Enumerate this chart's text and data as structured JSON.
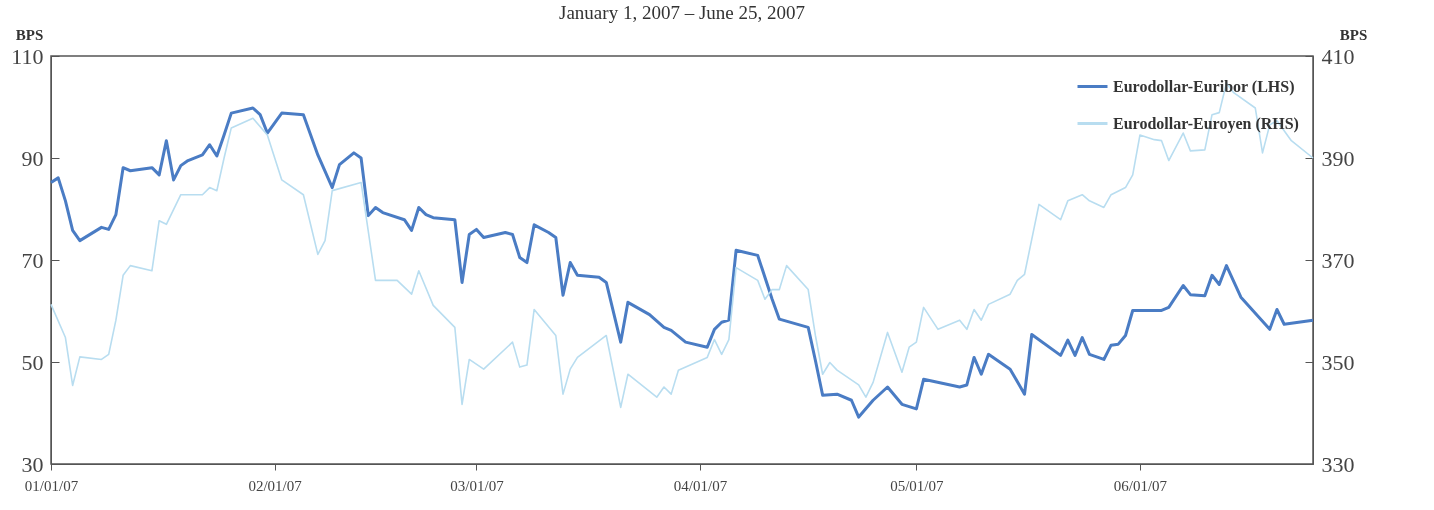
{
  "chart_data": {
    "type": "line",
    "title": "January 1, 2007 – June 25, 2007",
    "ylabel": "BPS",
    "y2label": "BPS",
    "xlim": [
      "2007-01-01",
      "2007-06-25"
    ],
    "xticks": [
      {
        "value": "2007-01-01",
        "label": "01/01/07"
      },
      {
        "value": "2007-02-01",
        "label": "02/01/07"
      },
      {
        "value": "2007-03-01",
        "label": "03/01/07"
      },
      {
        "value": "2007-04-01",
        "label": "04/01/07"
      },
      {
        "value": "2007-05-01",
        "label": "05/01/07"
      },
      {
        "value": "2007-06-01",
        "label": "06/01/07"
      }
    ],
    "ylim": [
      30,
      110
    ],
    "yticks": [
      30,
      50,
      70,
      90,
      110
    ],
    "y2lim": [
      330,
      410
    ],
    "y2ticks": [
      330,
      350,
      370,
      390,
      410
    ],
    "legend": "top right",
    "grid": false,
    "series": [
      {
        "name": "Eurodollar-Euribor (LHS)",
        "color": "#4a7cc4",
        "x": [
          "2007-01-01",
          "2007-01-02",
          "2007-01-03",
          "2007-01-04",
          "2007-01-05",
          "2007-01-08",
          "2007-01-09",
          "2007-01-10",
          "2007-01-11",
          "2007-01-12",
          "2007-01-15",
          "2007-01-16",
          "2007-01-17",
          "2007-01-18",
          "2007-01-19",
          "2007-01-20",
          "2007-01-22",
          "2007-01-23",
          "2007-01-24",
          "2007-01-25",
          "2007-01-26",
          "2007-01-29",
          "2007-01-30",
          "2007-01-31",
          "2007-02-02",
          "2007-02-05",
          "2007-02-07",
          "2007-02-09",
          "2007-02-10",
          "2007-02-12",
          "2007-02-13",
          "2007-02-14",
          "2007-02-15",
          "2007-02-16",
          "2007-02-19",
          "2007-02-20",
          "2007-02-21",
          "2007-02-22",
          "2007-02-23",
          "2007-02-26",
          "2007-02-27",
          "2007-02-28",
          "2007-03-01",
          "2007-03-02",
          "2007-03-05",
          "2007-03-06",
          "2007-03-07",
          "2007-03-08",
          "2007-03-09",
          "2007-03-11",
          "2007-03-12",
          "2007-03-13",
          "2007-03-14",
          "2007-03-15",
          "2007-03-18",
          "2007-03-19",
          "2007-03-21",
          "2007-03-22",
          "2007-03-25",
          "2007-03-27",
          "2007-03-28",
          "2007-03-30",
          "2007-04-02",
          "2007-04-03",
          "2007-04-04",
          "2007-04-05",
          "2007-04-06",
          "2007-04-09",
          "2007-04-11",
          "2007-04-12",
          "2007-04-16",
          "2007-04-17",
          "2007-04-18",
          "2007-04-20",
          "2007-04-22",
          "2007-04-23",
          "2007-04-25",
          "2007-04-27",
          "2007-04-29",
          "2007-05-01",
          "2007-05-02",
          "2007-05-07",
          "2007-05-08",
          "2007-05-09",
          "2007-05-10",
          "2007-05-11",
          "2007-05-14",
          "2007-05-16",
          "2007-05-17",
          "2007-05-21",
          "2007-05-22",
          "2007-05-23",
          "2007-05-24",
          "2007-05-25",
          "2007-05-27",
          "2007-05-28",
          "2007-05-29",
          "2007-05-30",
          "2007-05-31",
          "2007-06-04",
          "2007-06-05",
          "2007-06-07",
          "2007-06-08",
          "2007-06-10",
          "2007-06-11",
          "2007-06-12",
          "2007-06-13",
          "2007-06-15",
          "2007-06-19",
          "2007-06-20",
          "2007-06-21",
          "2007-06-25"
        ],
        "values": [
          85.2,
          86.1,
          81.6,
          75.8,
          73.8,
          76.4,
          76.0,
          78.9,
          88.1,
          87.5,
          88.1,
          86.7,
          93.4,
          85.7,
          88.5,
          89.5,
          90.6,
          92.6,
          90.4,
          94.5,
          98.8,
          99.8,
          98.5,
          94.9,
          98.8,
          98.5,
          90.6,
          84.2,
          88.7,
          91.0,
          90.0,
          78.7,
          80.3,
          79.3,
          77.9,
          75.8,
          80.3,
          78.9,
          78.3,
          77.9,
          65.6,
          75.0,
          76.0,
          74.4,
          75.4,
          75.0,
          70.5,
          69.5,
          76.9,
          75.4,
          74.4,
          63.1,
          69.5,
          67.0,
          66.6,
          65.6,
          53.9,
          61.7,
          59.3,
          56.8,
          56.2,
          53.9,
          52.9,
          56.4,
          57.8,
          58.2,
          71.9,
          70.9,
          62.3,
          58.4,
          56.8,
          50.3,
          43.5,
          43.7,
          42.5,
          39.2,
          42.5,
          45.1,
          41.7,
          40.8,
          46.6,
          45.1,
          45.5,
          50.9,
          47.6,
          51.5,
          48.6,
          43.7,
          55.4,
          51.3,
          54.3,
          51.3,
          54.8,
          51.5,
          50.5,
          53.3,
          53.5,
          55.2,
          60.1,
          60.1,
          60.7,
          65.0,
          63.2,
          63.0,
          67.0,
          65.2,
          68.9,
          62.7,
          56.4,
          60.3,
          57.4,
          58.2
        ]
      },
      {
        "name": "Eurodollar-Euroyen (RHS)",
        "color": "#b8ddf0",
        "axis": "y2",
        "x": [
          "2007-01-01",
          "2007-01-03",
          "2007-01-04",
          "2007-01-05",
          "2007-01-08",
          "2007-01-09",
          "2007-01-10",
          "2007-01-11",
          "2007-01-12",
          "2007-01-15",
          "2007-01-16",
          "2007-01-17",
          "2007-01-19",
          "2007-01-22",
          "2007-01-23",
          "2007-01-24",
          "2007-01-25",
          "2007-01-26",
          "2007-01-29",
          "2007-01-31",
          "2007-02-02",
          "2007-02-05",
          "2007-02-07",
          "2007-02-08",
          "2007-02-09",
          "2007-02-13",
          "2007-02-15",
          "2007-02-18",
          "2007-02-20",
          "2007-02-21",
          "2007-02-23",
          "2007-02-26",
          "2007-02-27",
          "2007-02-28",
          "2007-03-02",
          "2007-03-06",
          "2007-03-07",
          "2007-03-08",
          "2007-03-09",
          "2007-03-12",
          "2007-03-13",
          "2007-03-14",
          "2007-03-15",
          "2007-03-19",
          "2007-03-21",
          "2007-03-22",
          "2007-03-26",
          "2007-03-27",
          "2007-03-28",
          "2007-03-29",
          "2007-04-02",
          "2007-04-03",
          "2007-04-04",
          "2007-04-05",
          "2007-04-06",
          "2007-04-09",
          "2007-04-10",
          "2007-04-11",
          "2007-04-12",
          "2007-04-13",
          "2007-04-16",
          "2007-04-17",
          "2007-04-18",
          "2007-04-19",
          "2007-04-20",
          "2007-04-23",
          "2007-04-24",
          "2007-04-25",
          "2007-04-27",
          "2007-04-29",
          "2007-04-30",
          "2007-05-01",
          "2007-05-02",
          "2007-05-04",
          "2007-05-07",
          "2007-05-08",
          "2007-05-09",
          "2007-05-10",
          "2007-05-11",
          "2007-05-14",
          "2007-05-15",
          "2007-05-16",
          "2007-05-18",
          "2007-05-21",
          "2007-05-22",
          "2007-05-24",
          "2007-05-25",
          "2007-05-27",
          "2007-05-28",
          "2007-05-30",
          "2007-05-31",
          "2007-06-01",
          "2007-06-03",
          "2007-06-04",
          "2007-06-05",
          "2007-06-07",
          "2007-06-08",
          "2007-06-10",
          "2007-06-11",
          "2007-06-12",
          "2007-06-13",
          "2007-06-14",
          "2007-06-17",
          "2007-06-18",
          "2007-06-19",
          "2007-06-20",
          "2007-06-22",
          "2007-06-25"
        ],
        "values": [
          361.3,
          354.8,
          345.4,
          351.0,
          350.5,
          351.5,
          358.2,
          367.0,
          368.9,
          367.9,
          377.7,
          377.0,
          382.8,
          382.8,
          384.2,
          383.6,
          390.0,
          395.9,
          397.8,
          394.5,
          385.7,
          382.8,
          371.1,
          373.8,
          383.6,
          385.2,
          366.0,
          366.0,
          363.3,
          367.9,
          361.1,
          356.8,
          341.7,
          350.5,
          348.6,
          353.9,
          349.0,
          349.4,
          360.3,
          355.2,
          343.7,
          348.6,
          350.9,
          355.2,
          341.1,
          347.6,
          343.1,
          345.1,
          343.7,
          348.4,
          350.9,
          354.4,
          351.5,
          354.4,
          368.5,
          366.0,
          362.3,
          364.2,
          364.2,
          368.9,
          364.2,
          355.2,
          347.6,
          349.9,
          348.4,
          345.5,
          343.1,
          346.0,
          355.8,
          348.0,
          352.9,
          353.9,
          360.7,
          356.4,
          358.2,
          356.4,
          360.3,
          358.2,
          361.3,
          363.3,
          366.0,
          367.2,
          380.9,
          377.9,
          381.6,
          382.8,
          381.6,
          380.3,
          382.8,
          384.2,
          386.7,
          394.5,
          393.6,
          393.4,
          389.5,
          394.9,
          391.4,
          391.6,
          398.5,
          398.9,
          404.7,
          402.8,
          399.8,
          391.0,
          396.5,
          397.3,
          393.4,
          390.0
        ]
      }
    ]
  }
}
